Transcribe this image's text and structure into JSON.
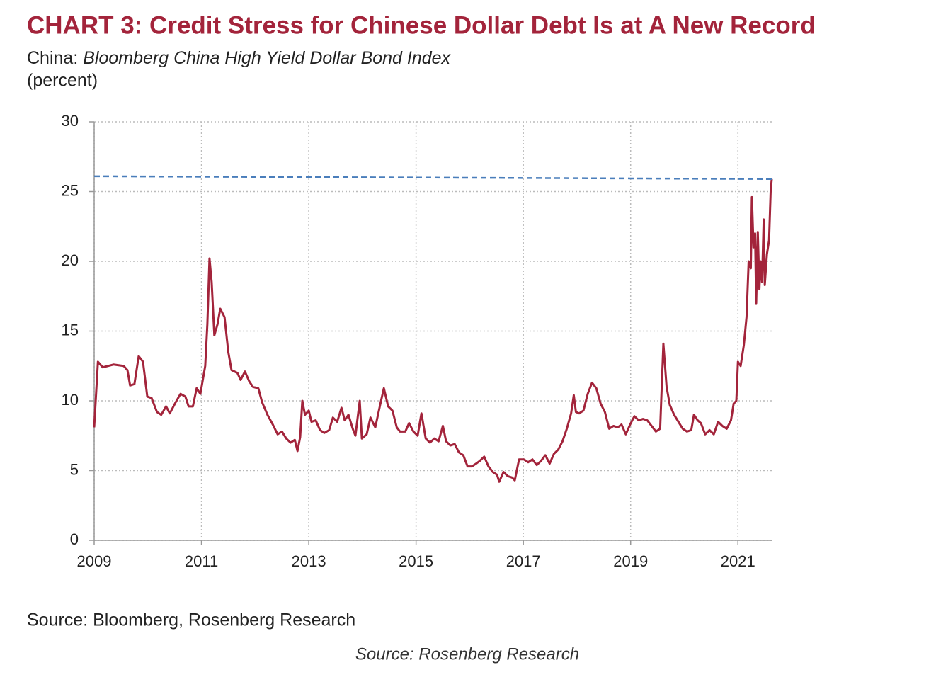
{
  "chart_data": {
    "type": "line",
    "title": "CHART 3: Credit Stress for Chinese Dollar Debt Is at A New Record",
    "subtitle_prefix": "China: ",
    "subtitle": "Bloomberg China High Yield Dollar Bond Index",
    "y_label": "(percent)",
    "source": "Source: Bloomberg, Rosenberg Research",
    "caption": "Source: Rosenberg Research",
    "xlim": [
      2009,
      2021.63
    ],
    "xticks": [
      2009,
      2011,
      2013,
      2015,
      2017,
      2019,
      2021
    ],
    "ylim": [
      0,
      30
    ],
    "yticks": [
      0,
      5,
      10,
      15,
      20,
      25,
      30
    ],
    "grid": true,
    "series": [
      {
        "color": "#a3243b",
        "dashed": false,
        "x": [
          2009.0,
          2009.07,
          2009.16,
          2009.36,
          2009.55,
          2009.62,
          2009.67,
          2009.75,
          2009.83,
          2009.91,
          2009.99,
          2010.07,
          2010.17,
          2010.25,
          2010.34,
          2010.41,
          2010.52,
          2010.61,
          2010.7,
          2010.76,
          2010.84,
          2010.91,
          2010.98,
          2011.07,
          2011.11,
          2011.15,
          2011.19,
          2011.24,
          2011.3,
          2011.35,
          2011.43,
          2011.5,
          2011.56,
          2011.67,
          2011.73,
          2011.81,
          2011.89,
          2011.96,
          2012.06,
          2012.13,
          2012.23,
          2012.33,
          2012.42,
          2012.5,
          2012.58,
          2012.66,
          2012.74,
          2012.79,
          2012.84,
          2012.88,
          2012.93,
          2013.0,
          2013.05,
          2013.13,
          2013.21,
          2013.29,
          2013.38,
          2013.45,
          2013.53,
          2013.61,
          2013.67,
          2013.74,
          2013.82,
          2013.87,
          2013.95,
          2013.99,
          2014.08,
          2014.15,
          2014.24,
          2014.33,
          2014.4,
          2014.48,
          2014.56,
          2014.64,
          2014.7,
          2014.8,
          2014.87,
          2014.95,
          2015.03,
          2015.1,
          2015.18,
          2015.26,
          2015.34,
          2015.42,
          2015.5,
          2015.56,
          2015.64,
          2015.72,
          2015.8,
          2015.88,
          2015.96,
          2016.04,
          2016.12,
          2016.19,
          2016.27,
          2016.35,
          2016.43,
          2016.51,
          2016.55,
          2016.63,
          2016.71,
          2016.79,
          2016.84,
          2016.92,
          2017.01,
          2017.09,
          2017.17,
          2017.25,
          2017.33,
          2017.41,
          2017.49,
          2017.57,
          2017.65,
          2017.73,
          2017.81,
          2017.89,
          2017.94,
          2017.98,
          2018.04,
          2018.12,
          2018.2,
          2018.28,
          2018.36,
          2018.44,
          2018.52,
          2018.6,
          2018.68,
          2018.76,
          2018.83,
          2018.91,
          2018.99,
          2019.07,
          2019.15,
          2019.23,
          2019.31,
          2019.39,
          2019.47,
          2019.55,
          2019.61,
          2019.67,
          2019.73,
          2019.81,
          2019.89,
          2019.97,
          2020.05,
          2020.13,
          2020.18,
          2020.25,
          2020.31,
          2020.39,
          2020.47,
          2020.55,
          2020.63,
          2020.71,
          2020.79,
          2020.87,
          2020.92,
          2020.97,
          2021.0,
          2021.05,
          2021.11,
          2021.16,
          2021.2,
          2021.24,
          2021.26,
          2021.29,
          2021.32,
          2021.34,
          2021.37,
          2021.4,
          2021.42,
          2021.45,
          2021.48,
          2021.5,
          2021.54,
          2021.58,
          2021.61,
          2021.63
        ],
        "values": [
          8.1,
          12.8,
          12.4,
          12.6,
          12.5,
          12.2,
          11.1,
          11.2,
          13.2,
          12.8,
          10.3,
          10.2,
          9.2,
          9.0,
          9.6,
          9.1,
          9.9,
          10.5,
          10.3,
          9.6,
          9.6,
          10.9,
          10.5,
          12.5,
          15.5,
          20.2,
          18.5,
          14.7,
          15.5,
          16.6,
          16.0,
          13.5,
          12.2,
          12.0,
          11.5,
          12.1,
          11.4,
          11.0,
          10.9,
          9.9,
          9.0,
          8.3,
          7.6,
          7.8,
          7.3,
          7.0,
          7.2,
          6.4,
          7.4,
          10.0,
          9.0,
          9.3,
          8.5,
          8.6,
          7.9,
          7.7,
          7.9,
          8.8,
          8.5,
          9.5,
          8.6,
          9.0,
          8.0,
          7.5,
          10.0,
          7.3,
          7.6,
          8.8,
          8.1,
          9.7,
          10.9,
          9.6,
          9.3,
          8.1,
          7.8,
          7.8,
          8.4,
          7.8,
          7.5,
          9.1,
          7.3,
          7.0,
          7.3,
          7.1,
          8.2,
          7.1,
          6.8,
          6.9,
          6.3,
          6.1,
          5.3,
          5.3,
          5.5,
          5.7,
          6.0,
          5.3,
          4.9,
          4.7,
          4.2,
          4.9,
          4.6,
          4.5,
          4.3,
          5.8,
          5.8,
          5.6,
          5.8,
          5.4,
          5.7,
          6.1,
          5.5,
          6.2,
          6.5,
          7.1,
          8.0,
          9.1,
          10.4,
          9.2,
          9.1,
          9.3,
          10.5,
          11.3,
          10.9,
          9.8,
          9.2,
          8.0,
          8.2,
          8.1,
          8.3,
          7.6,
          8.3,
          8.9,
          8.6,
          8.7,
          8.6,
          8.2,
          7.8,
          8.0,
          14.1,
          11.0,
          9.7,
          9.0,
          8.5,
          8.0,
          7.8,
          7.9,
          9.0,
          8.6,
          8.4,
          7.6,
          7.9,
          7.6,
          8.5,
          8.2,
          8.0,
          8.6,
          9.8,
          10.0,
          12.8,
          12.5,
          14.0,
          16.0,
          20.0,
          19.5,
          24.6,
          21.0,
          22.0,
          17.0,
          22.1,
          18.0,
          20.0,
          18.5,
          23.0,
          18.3,
          20.5,
          21.5,
          25.0,
          25.9
        ]
      },
      {
        "color": "#4a7ebb",
        "dashed": true,
        "x": [
          2009,
          2021.63
        ],
        "values": [
          26.1,
          25.9
        ]
      }
    ]
  }
}
